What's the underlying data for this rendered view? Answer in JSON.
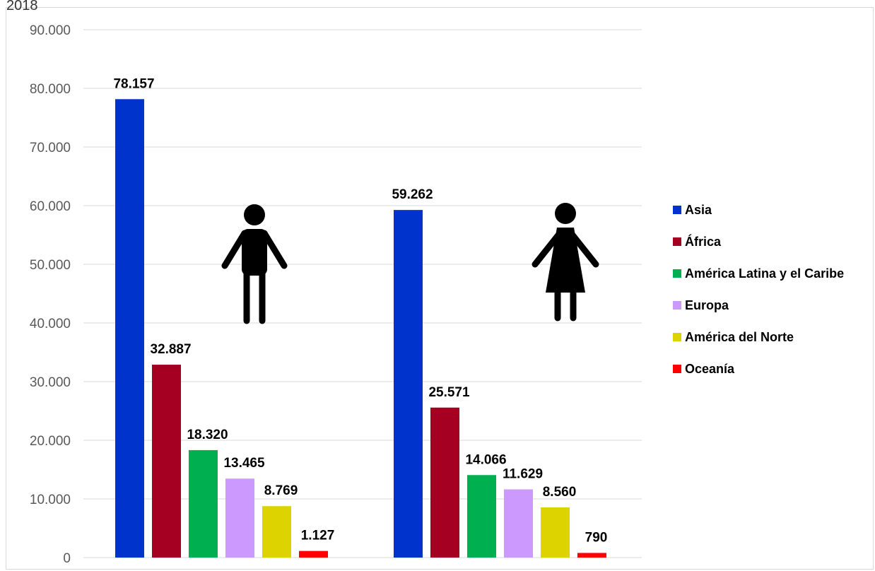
{
  "chart_data": {
    "type": "bar",
    "title": "",
    "title_fragment": "2018",
    "xlabel": "",
    "ylabel": "",
    "ylim": [
      0,
      90000
    ],
    "yticks": [
      0,
      10000,
      20000,
      30000,
      40000,
      50000,
      60000,
      70000,
      80000,
      90000
    ],
    "ytick_labels": [
      "0",
      "10.000",
      "20.000",
      "30.000",
      "40.000",
      "50.000",
      "60.000",
      "70.000",
      "80.000",
      "90.000"
    ],
    "grid": true,
    "legend_position": "right",
    "groups": [
      {
        "icon": "man-icon",
        "values": [
          78157,
          32887,
          18320,
          13465,
          8769,
          1127
        ],
        "labels": [
          "78.157",
          "32.887",
          "18.320",
          "13.465",
          "8.769",
          "1.127"
        ]
      },
      {
        "icon": "woman-icon",
        "values": [
          59262,
          25571,
          14066,
          11629,
          8560,
          790
        ],
        "labels": [
          "59.262",
          "25.571",
          "14.066",
          "11.629",
          "8.560",
          "790"
        ]
      }
    ],
    "series": [
      {
        "name": "Asia",
        "color": "#0033cc"
      },
      {
        "name": "África",
        "color": "#a50021"
      },
      {
        "name": "América Latina y el Caribe",
        "color": "#00b050"
      },
      {
        "name": "Europa",
        "color": "#cc99ff"
      },
      {
        "name": "América del Norte",
        "color": "#dcd300"
      },
      {
        "name": "Oceanía",
        "color": "#ff0000"
      }
    ]
  }
}
